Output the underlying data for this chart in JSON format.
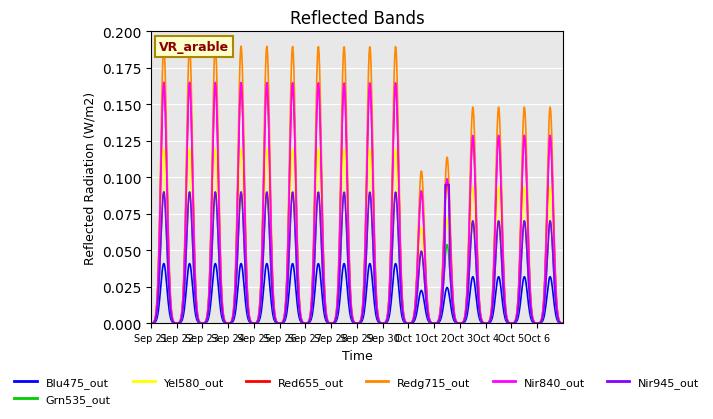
{
  "title": "Reflected Bands",
  "xlabel": "Time",
  "ylabel": "Reflected Radiation (W/m2)",
  "annotation": "VR_arable",
  "ylim": [
    0,
    0.2
  ],
  "series_order": [
    "Blu475_out",
    "Grn535_out",
    "Yel580_out",
    "Red655_out",
    "Redg715_out",
    "Nir840_out",
    "Nir945_out"
  ],
  "series_colors": {
    "Blu475_out": "#0000FF",
    "Grn535_out": "#00CC00",
    "Yel580_out": "#FFFF00",
    "Red655_out": "#FF0000",
    "Redg715_out": "#FF8800",
    "Nir840_out": "#FF00FF",
    "Nir945_out": "#8800FF"
  },
  "series_peaks": {
    "Blu475_out": 0.041,
    "Grn535_out": 0.09,
    "Yel580_out": 0.12,
    "Red655_out": 0.165,
    "Redg715_out": 0.19,
    "Nir840_out": 0.165,
    "Nir945_out": 0.09
  },
  "n_days": 16,
  "pts_per_day": 48,
  "xtick_labels": [
    "Sep 21",
    "Sep 22",
    "Sep 23",
    "Sep 24",
    "Sep 25",
    "Sep 26",
    "Sep 27",
    "Sep 28",
    "Sep 29",
    "Sep 30",
    "Oct 1",
    "Oct 2",
    "Oct 3",
    "Oct 4",
    "Oct 5",
    "Oct 6"
  ],
  "bg_color": "#E8E8E8",
  "grid_color": "#FFFFFF",
  "lw": 1.2
}
